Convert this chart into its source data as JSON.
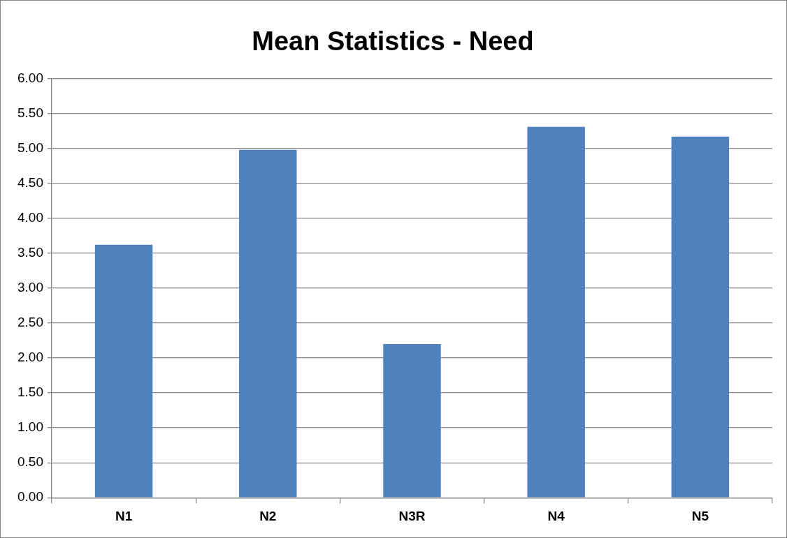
{
  "chart_data": {
    "type": "bar",
    "title": "Mean Statistics - Need",
    "categories": [
      "N1",
      "N2",
      "N3R",
      "N4",
      "N5"
    ],
    "values": [
      3.62,
      4.98,
      2.2,
      5.31,
      5.17
    ],
    "color": "#4f81bd",
    "ylim": [
      0,
      6
    ],
    "yticks": [
      {
        "value": 0,
        "label": "0.00"
      },
      {
        "value": 0.5,
        "label": "0.50"
      },
      {
        "value": 1,
        "label": "1.00"
      },
      {
        "value": 1.5,
        "label": "1.50"
      },
      {
        "value": 2,
        "label": "2.00"
      },
      {
        "value": 2.5,
        "label": "2.50"
      },
      {
        "value": 3,
        "label": "3.00"
      },
      {
        "value": 3.5,
        "label": "3.50"
      },
      {
        "value": 4,
        "label": "4.00"
      },
      {
        "value": 4.5,
        "label": "4.50"
      },
      {
        "value": 5,
        "label": "5.00"
      },
      {
        "value": 5.5,
        "label": "5.50"
      },
      {
        "value": 6,
        "label": "6.00"
      }
    ],
    "grid": "y",
    "legend": false
  }
}
